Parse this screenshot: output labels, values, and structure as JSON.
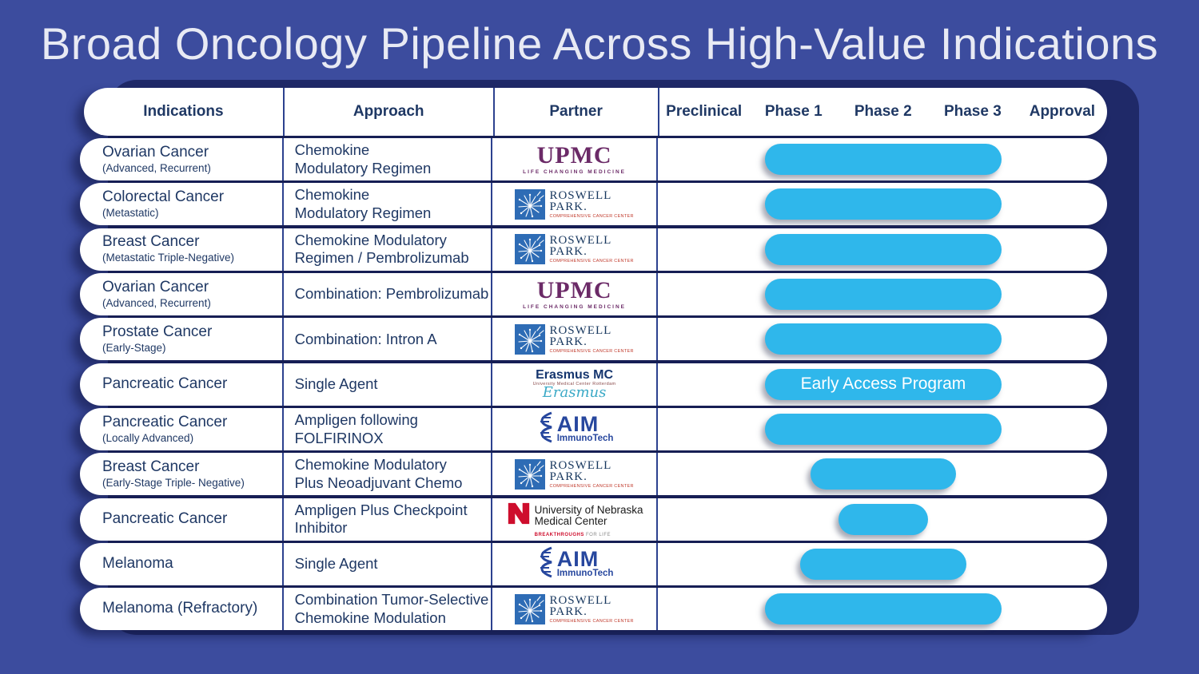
{
  "title": "Broad Oncology Pipeline Across High-Value Indications",
  "colors": {
    "background": "#3C4C9E",
    "backdrop_navy": "#1F2968",
    "bar_cyan": "#2FB7EB",
    "text_navy": "#1F3864",
    "upmc_purple": "#6B2A67",
    "roswell_blue": "#2E6CB5",
    "unmc_red": "#CE0E2D",
    "erasmus_teal": "#3AA9C6"
  },
  "table": {
    "headers": [
      "Indications",
      "Approach",
      "Partner"
    ],
    "phases": [
      "Preclinical",
      "Phase 1",
      "Phase 2",
      "Phase 3",
      "Approval"
    ],
    "rows": [
      {
        "indication": "Ovarian Cancer",
        "subtitle": "(Advanced, Recurrent)",
        "approach": "Chemokine\nModulatory Regimen",
        "partner": "upmc",
        "bar_pct": 52.6,
        "bar_label": ""
      },
      {
        "indication": "Colorectal Cancer",
        "subtitle": "(Metastatic)",
        "approach": "Chemokine\nModulatory Regimen",
        "partner": "roswell",
        "bar_pct": 52.6,
        "bar_label": ""
      },
      {
        "indication": "Breast Cancer",
        "subtitle": "(Metastatic Triple-Negative)",
        "approach": "Chemokine Modulatory\nRegimen / Pembrolizumab",
        "partner": "roswell",
        "bar_pct": 52.6,
        "bar_label": ""
      },
      {
        "indication": "Ovarian Cancer",
        "subtitle": "(Advanced, Recurrent)",
        "approach": "Combination: Pembrolizumab",
        "partner": "upmc",
        "bar_pct": 52.6,
        "bar_label": ""
      },
      {
        "indication": "Prostate Cancer",
        "subtitle": "(Early-Stage)",
        "approach": "Combination: Intron A",
        "partner": "roswell",
        "bar_pct": 52.6,
        "bar_label": ""
      },
      {
        "indication": "Pancreatic Cancer",
        "subtitle": "",
        "approach": "Single Agent",
        "partner": "erasmus",
        "bar_pct": 52.6,
        "bar_label": "Early Access Program"
      },
      {
        "indication": "Pancreatic Cancer",
        "subtitle": "(Locally Advanced)",
        "approach": "Ampligen following\nFOLFIRINOX",
        "partner": "aim",
        "bar_pct": 52.6,
        "bar_label": ""
      },
      {
        "indication": "Breast Cancer",
        "subtitle": "(Early-Stage Triple- Negative)",
        "approach": "Chemokine Modulatory\nPlus Neoadjuvant Chemo",
        "partner": "roswell",
        "bar_pct": 32.5,
        "bar_label": ""
      },
      {
        "indication": "Pancreatic Cancer",
        "subtitle": "",
        "approach": "Ampligen Plus Checkpoint\nInhibitor",
        "partner": "unmc",
        "bar_pct": 19.9,
        "bar_label": ""
      },
      {
        "indication": "Melanoma",
        "subtitle": "",
        "approach": "Single Agent",
        "partner": "aim",
        "bar_pct": 36.9,
        "bar_label": ""
      },
      {
        "indication": "Melanoma (Refractory)",
        "subtitle": "",
        "approach": "Combination Tumor-Selective\nChemokine Modulation",
        "partner": "roswell",
        "bar_pct": 52.6,
        "bar_label": ""
      }
    ]
  },
  "logos": {
    "upmc": {
      "name": "UPMC",
      "tagline": "LIFE CHANGING MEDICINE"
    },
    "roswell": {
      "line1": "ROSWELL",
      "line2": "PARK.",
      "tagline": "COMPREHENSIVE CANCER CENTER"
    },
    "erasmus": {
      "name": "Erasmus MC",
      "sub": "University Medical Center Rotterdam",
      "script": "Erasmus"
    },
    "aim": {
      "name": "AIM",
      "sub": "ImmunoTech"
    },
    "unmc": {
      "line1": "University of Nebraska",
      "line2": "Medical Center",
      "tagline_red": "BREAKTHROUGHS",
      "tagline_gray": "FOR LIFE"
    }
  },
  "chart_data": {
    "type": "bar",
    "title": "Broad Oncology Pipeline Across High-Value Indications",
    "categories": [
      "Ovarian Cancer (Advanced, Recurrent)",
      "Colorectal Cancer (Metastatic)",
      "Breast Cancer (Metastatic Triple-Negative)",
      "Ovarian Cancer (Advanced, Recurrent)",
      "Prostate Cancer (Early-Stage)",
      "Pancreatic Cancer",
      "Pancreatic Cancer (Locally Advanced)",
      "Breast Cancer (Early-Stage Triple- Negative)",
      "Pancreatic Cancer",
      "Melanoma",
      "Melanoma (Refractory)"
    ],
    "x_axis_labels": [
      "Preclinical",
      "Phase 1",
      "Phase 2",
      "Phase 3",
      "Approval"
    ],
    "series": [
      {
        "name": "Pipeline progress (fraction of Preclinical-to-Approval track)",
        "values": [
          0.53,
          0.53,
          0.53,
          0.53,
          0.53,
          0.53,
          0.53,
          0.33,
          0.2,
          0.37,
          0.53
        ]
      }
    ],
    "ends_in": [
      "Phase 2",
      "Phase 2",
      "Phase 2",
      "Phase 2",
      "Phase 2",
      "Phase 2",
      "Phase 2",
      "Phase 1",
      "Preclinical/Phase 1 boundary",
      "Phase 1",
      "Phase 2"
    ],
    "annotations": [
      "Bar for row 6 (Pancreatic Cancer / Single Agent / Erasmus MC) carries label 'Early Access Program'"
    ],
    "legend": "none",
    "grid": "off"
  }
}
